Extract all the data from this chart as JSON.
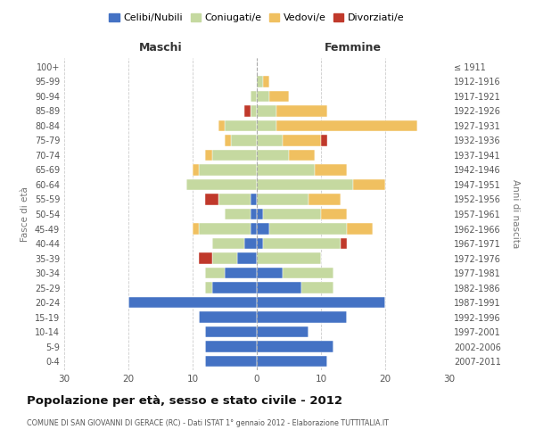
{
  "age_groups": [
    "0-4",
    "5-9",
    "10-14",
    "15-19",
    "20-24",
    "25-29",
    "30-34",
    "35-39",
    "40-44",
    "45-49",
    "50-54",
    "55-59",
    "60-64",
    "65-69",
    "70-74",
    "75-79",
    "80-84",
    "85-89",
    "90-94",
    "95-99",
    "100+"
  ],
  "birth_years": [
    "2007-2011",
    "2002-2006",
    "1997-2001",
    "1992-1996",
    "1987-1991",
    "1982-1986",
    "1977-1981",
    "1972-1976",
    "1967-1971",
    "1962-1966",
    "1957-1961",
    "1952-1956",
    "1947-1951",
    "1942-1946",
    "1937-1941",
    "1932-1936",
    "1927-1931",
    "1922-1926",
    "1917-1921",
    "1912-1916",
    "≤ 1911"
  ],
  "male": {
    "celibi": [
      8,
      8,
      8,
      9,
      20,
      7,
      5,
      3,
      2,
      1,
      1,
      1,
      0,
      0,
      0,
      0,
      0,
      0,
      0,
      0,
      0
    ],
    "coniugati": [
      0,
      0,
      0,
      0,
      0,
      1,
      3,
      4,
      5,
      8,
      4,
      5,
      11,
      9,
      7,
      4,
      5,
      1,
      1,
      0,
      0
    ],
    "vedovi": [
      0,
      0,
      0,
      0,
      0,
      0,
      0,
      0,
      0,
      1,
      0,
      0,
      0,
      1,
      1,
      1,
      1,
      0,
      0,
      0,
      0
    ],
    "divorziati": [
      0,
      0,
      0,
      0,
      0,
      0,
      0,
      2,
      0,
      0,
      0,
      2,
      0,
      0,
      0,
      0,
      0,
      1,
      0,
      0,
      0
    ]
  },
  "female": {
    "nubili": [
      11,
      12,
      8,
      14,
      20,
      7,
      4,
      0,
      1,
      2,
      1,
      0,
      0,
      0,
      0,
      0,
      0,
      0,
      0,
      0,
      0
    ],
    "coniugate": [
      0,
      0,
      0,
      0,
      0,
      5,
      8,
      10,
      12,
      12,
      9,
      8,
      15,
      9,
      5,
      4,
      3,
      3,
      2,
      1,
      0
    ],
    "vedove": [
      0,
      0,
      0,
      0,
      0,
      0,
      0,
      0,
      0,
      4,
      4,
      5,
      5,
      5,
      4,
      6,
      22,
      8,
      3,
      1,
      0
    ],
    "divorziate": [
      0,
      0,
      0,
      0,
      0,
      0,
      0,
      0,
      1,
      0,
      0,
      0,
      0,
      0,
      0,
      1,
      0,
      0,
      0,
      0,
      0
    ]
  },
  "colors": {
    "celibi_nubili": "#4472C4",
    "coniugati": "#c5d9a0",
    "vedovi": "#f0c060",
    "divorziati": "#c0392b"
  },
  "xlim": 30,
  "title": "Popolazione per età, sesso e stato civile - 2012",
  "subtitle": "COMUNE DI SAN GIOVANNI DI GERACE (RC) - Dati ISTAT 1° gennaio 2012 - Elaborazione TUTTITALIA.IT",
  "ylabel_left": "Fasce di età",
  "ylabel_right": "Anni di nascita",
  "xlabel_male": "Maschi",
  "xlabel_female": "Femmine",
  "legend_labels": [
    "Celibi/Nubili",
    "Coniugati/e",
    "Vedovi/e",
    "Divorziati/e"
  ],
  "background_color": "#ffffff",
  "grid_color": "#cccccc",
  "bar_height": 0.75
}
